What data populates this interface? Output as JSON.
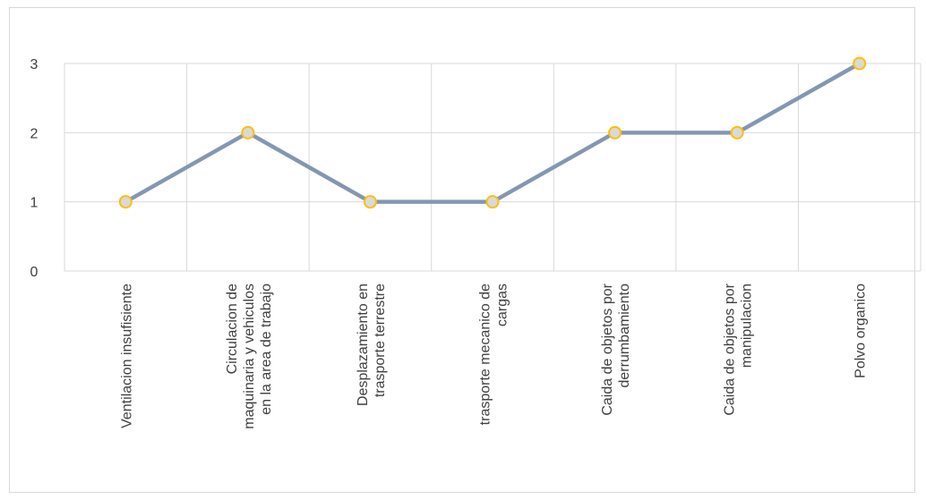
{
  "chart_data": {
    "type": "line",
    "title": "",
    "xlabel": "",
    "ylabel": "",
    "ylim": [
      0,
      3
    ],
    "yticks": [
      0,
      1,
      2,
      3
    ],
    "grid": true,
    "legend": "none",
    "categories": [
      [
        "Ventilacion insufisiente"
      ],
      [
        "Circulacion de",
        "maquinaria y vehiculos",
        "en la area de trabajo"
      ],
      [
        "Desplazamiento en",
        "trasporte terrestre"
      ],
      [
        "trasporte mecanico de",
        "cargas"
      ],
      [
        "Caida de objetos por",
        "derrumbamiento"
      ],
      [
        "Caida de objetos por",
        "manipulacion"
      ],
      [
        "Polvo organico"
      ]
    ],
    "series": [
      {
        "values": [
          1,
          2,
          1,
          1,
          2,
          2,
          3
        ]
      }
    ],
    "colors": {
      "line": "#8497b0",
      "marker_fill": "#d9d9d9",
      "marker_stroke": "#ffc000",
      "grid": "#d9d9d9",
      "text": "#404040"
    }
  }
}
